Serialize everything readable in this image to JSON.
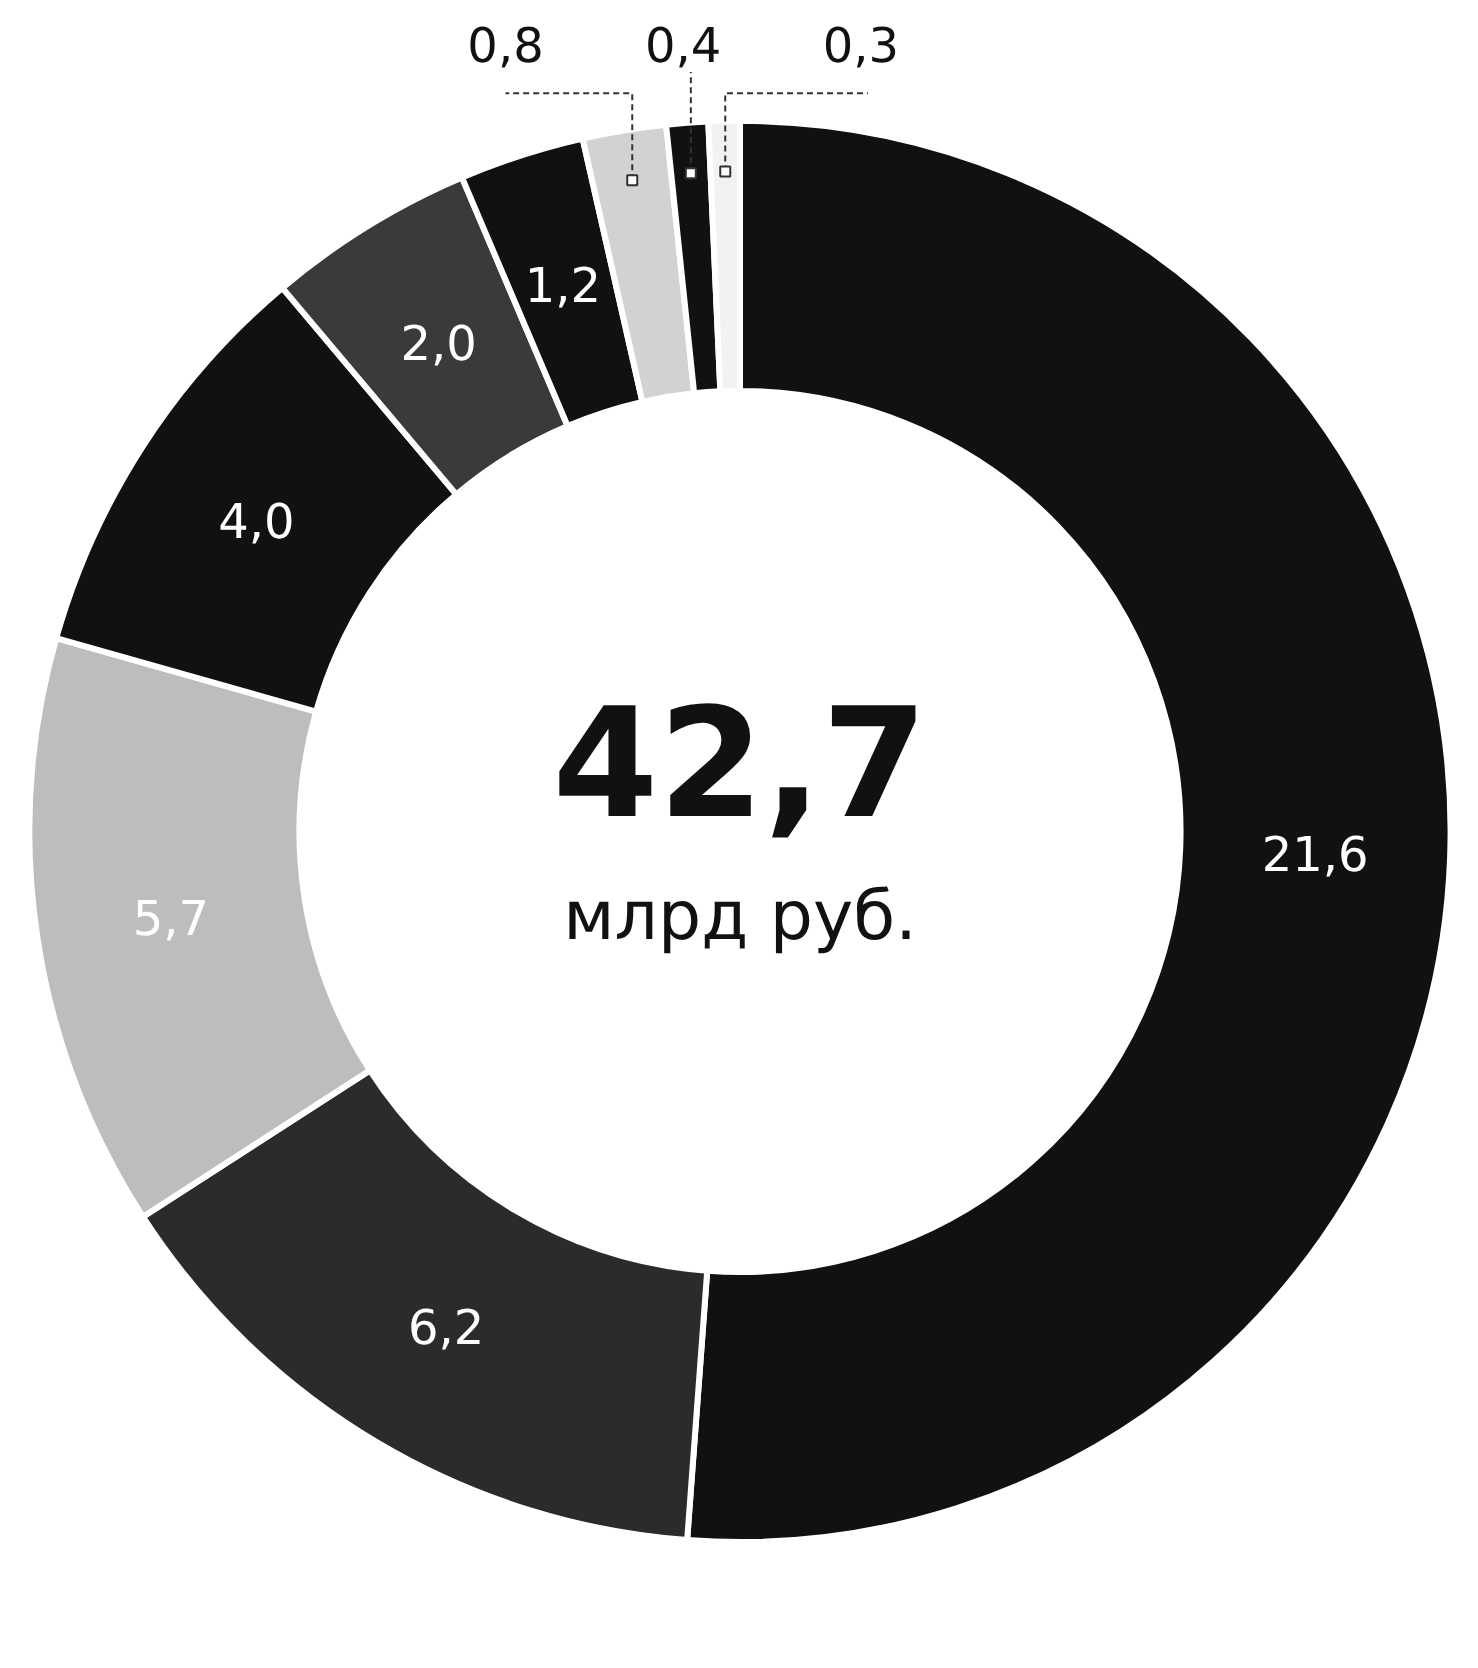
{
  "chart_data": {
    "type": "donut",
    "categories": [
      null,
      null,
      null,
      null,
      null,
      null,
      null,
      null,
      null
    ],
    "values": [
      21.6,
      6.2,
      5.7,
      4.0,
      2.0,
      1.2,
      0.8,
      0.4,
      0.3
    ],
    "value_labels": [
      "21,6",
      "6,2",
      "5,7",
      "4,0",
      "2,0",
      "1,2",
      "0,8",
      "0,4",
      "0,3"
    ],
    "colors": [
      "#111111",
      "#2b2b2b",
      "#bdbdbd",
      "#111111",
      "#3a3a3a",
      "#111111",
      "#d2d2d2",
      "#111111",
      "#f2f2f2"
    ],
    "annotations": [
      "42,7",
      "млрд руб."
    ]
  }
}
